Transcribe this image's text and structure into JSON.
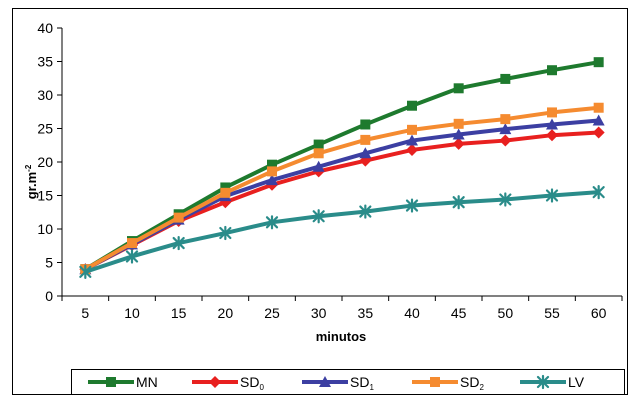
{
  "chart_data": {
    "type": "line",
    "title": "",
    "xlabel": "minutos",
    "ylabel": "gr.m",
    "ylabel_superscript": "-2",
    "x": [
      5,
      10,
      15,
      20,
      25,
      30,
      35,
      40,
      45,
      50,
      55,
      60
    ],
    "ylim": [
      0,
      40
    ],
    "yticks": [
      0,
      5,
      10,
      15,
      20,
      25,
      30,
      35,
      40
    ],
    "grid": false,
    "legend_position": "bottom",
    "series": [
      {
        "name": "MN",
        "sub": "",
        "color": "#1e7a2e",
        "marker": "square",
        "values": [
          4.0,
          8.2,
          12.2,
          16.2,
          19.6,
          22.6,
          25.6,
          28.4,
          31.0,
          32.4,
          33.7,
          34.9
        ]
      },
      {
        "name": "SD",
        "sub": "0",
        "color": "#e8201f",
        "marker": "diamond",
        "values": [
          4.0,
          7.6,
          11.2,
          14.0,
          16.6,
          18.6,
          20.2,
          21.8,
          22.7,
          23.2,
          24.0,
          24.4
        ]
      },
      {
        "name": "SD",
        "sub": "1",
        "color": "#3c3fa2",
        "marker": "triangle",
        "values": [
          4.0,
          7.7,
          11.4,
          14.9,
          17.3,
          19.3,
          21.3,
          23.2,
          24.1,
          24.9,
          25.6,
          26.2
        ]
      },
      {
        "name": "SD",
        "sub": "2",
        "color": "#f58b30",
        "marker": "square",
        "values": [
          4.0,
          7.9,
          11.7,
          15.4,
          18.6,
          21.3,
          23.3,
          24.8,
          25.7,
          26.4,
          27.4,
          28.1
        ]
      },
      {
        "name": "LV",
        "sub": "",
        "color": "#2a8c8a",
        "marker": "asterisk",
        "values": [
          3.6,
          5.9,
          7.9,
          9.4,
          11.0,
          11.9,
          12.6,
          13.5,
          14.0,
          14.4,
          15.0,
          15.5
        ]
      }
    ]
  }
}
